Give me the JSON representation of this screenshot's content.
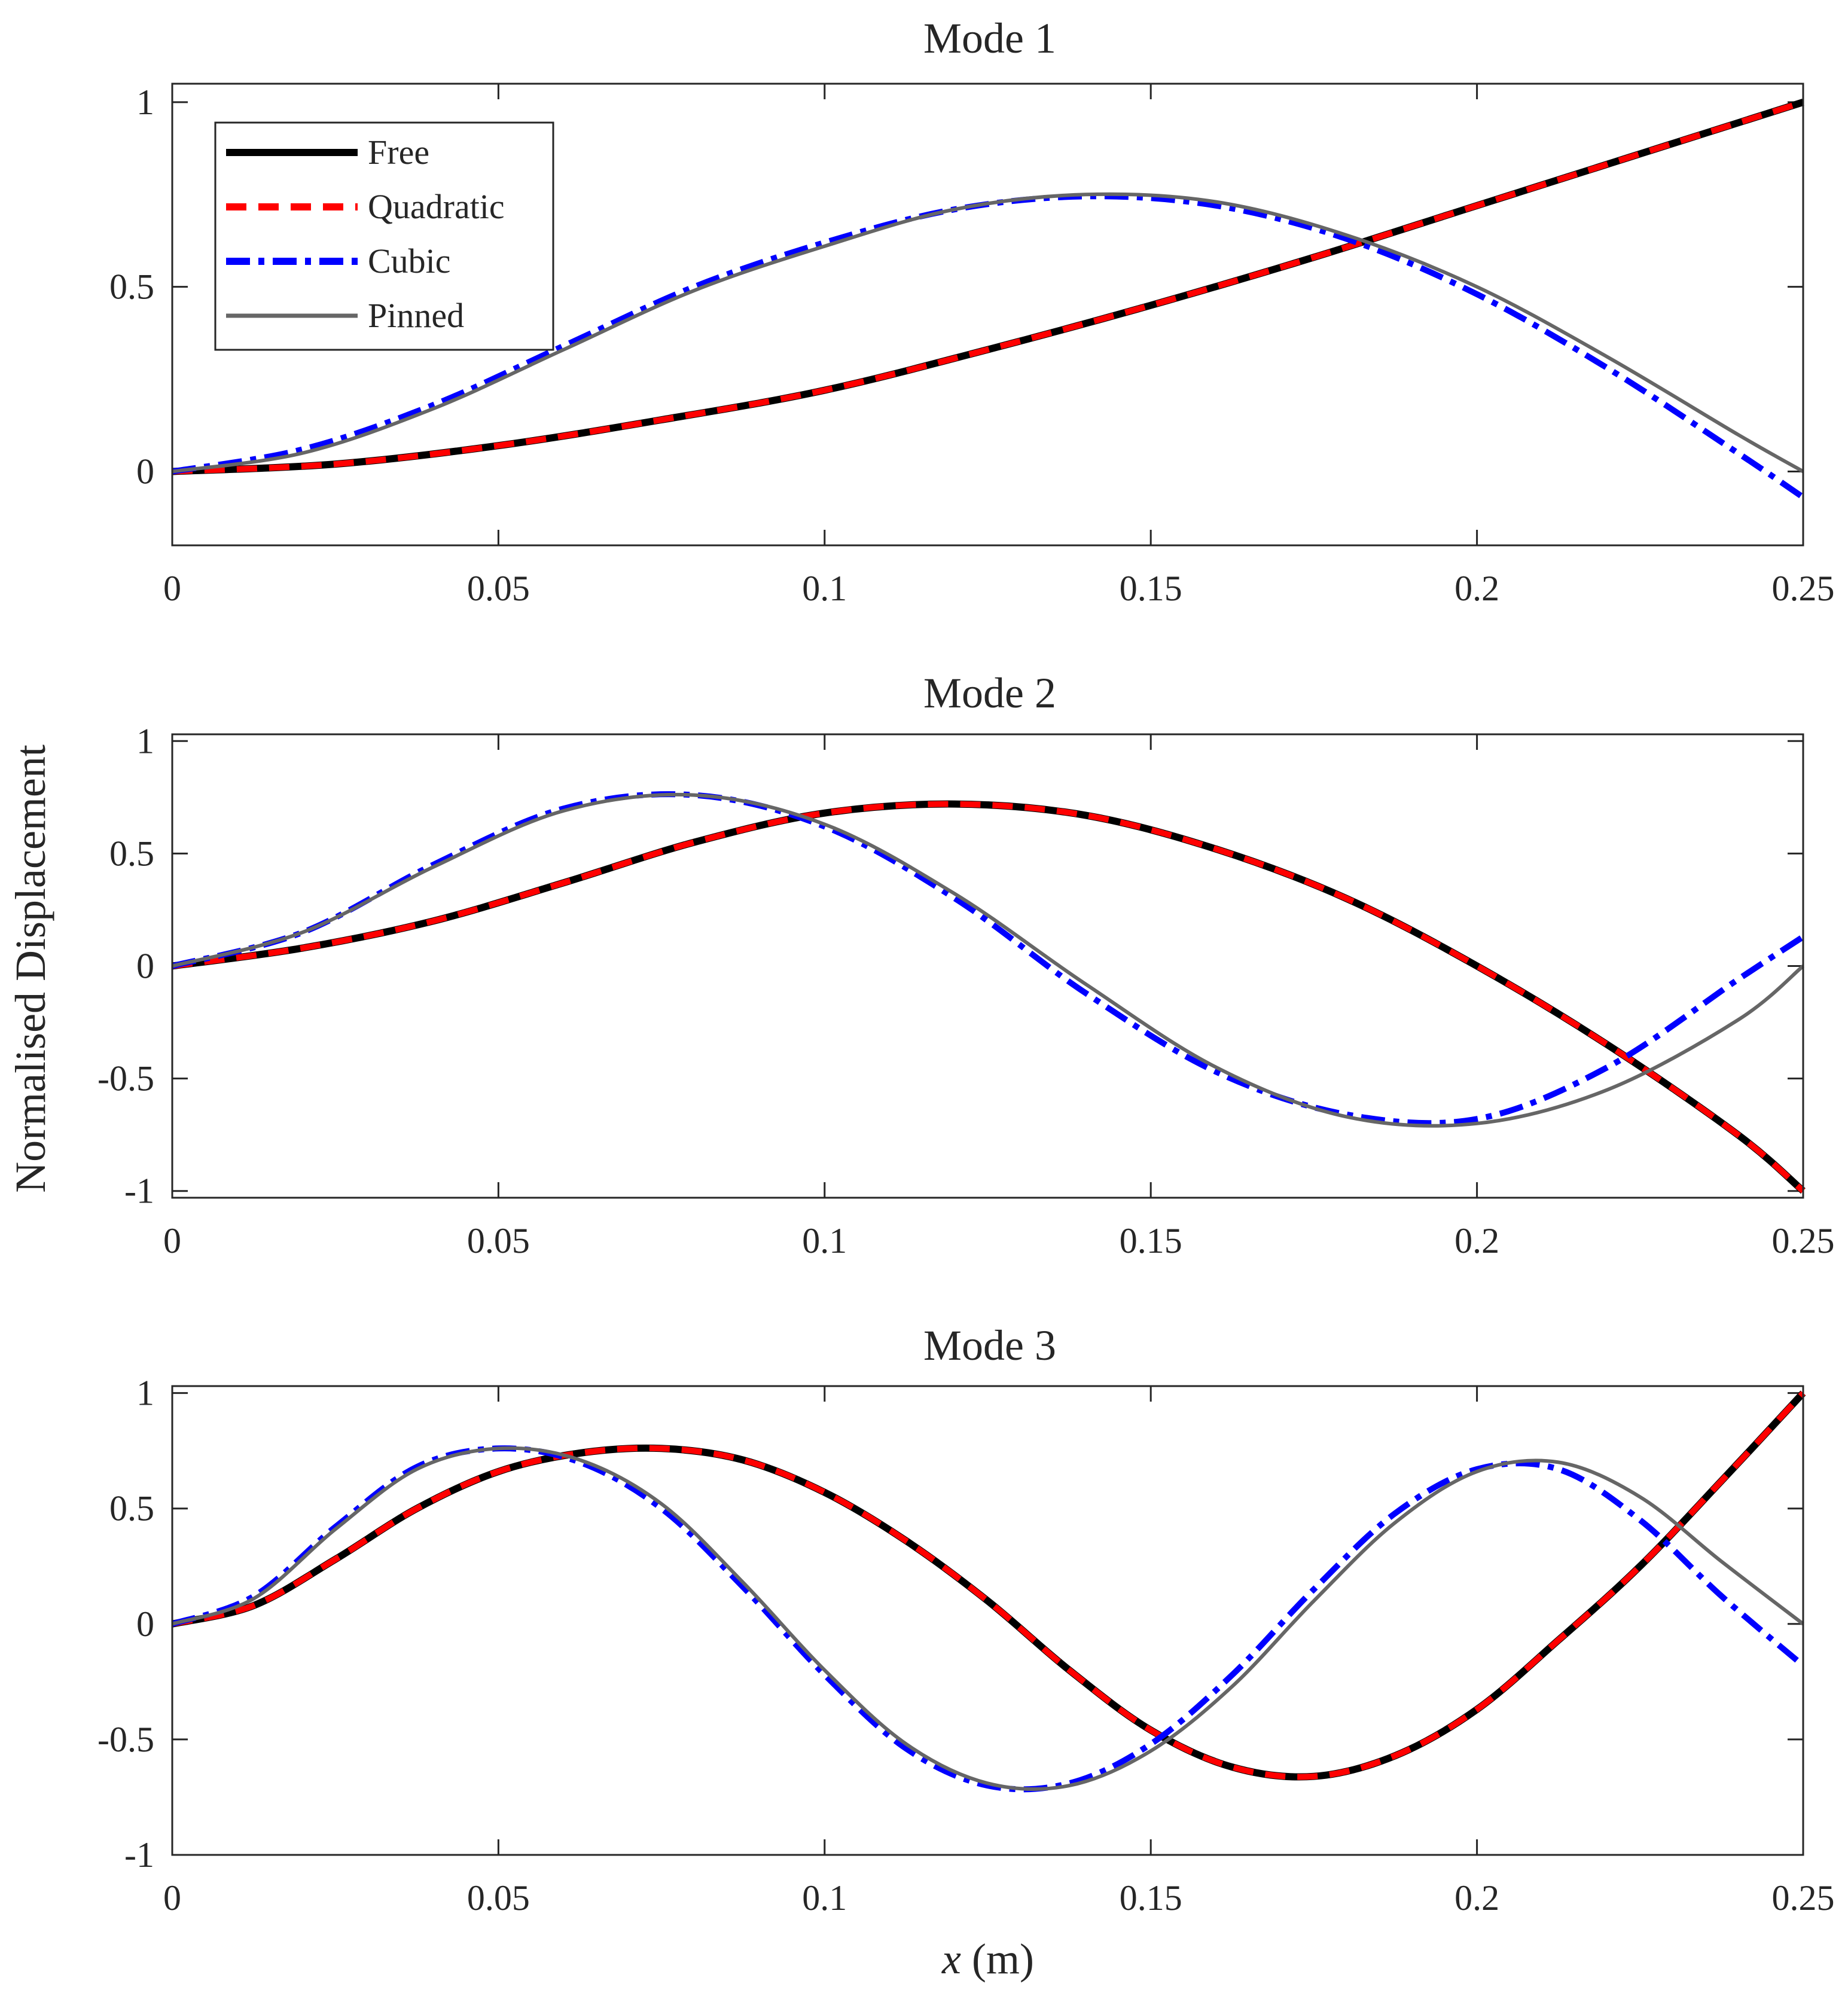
{
  "figure": {
    "ylabel": "Normalised Displacement",
    "xlabel_var": "x",
    "xlabel_unit": " (m)"
  },
  "legend": {
    "entries": [
      {
        "key": "free",
        "label": "Free"
      },
      {
        "key": "quadratic",
        "label": "Quadratic"
      },
      {
        "key": "cubic",
        "label": "Cubic"
      },
      {
        "key": "pinned",
        "label": "Pinned"
      }
    ],
    "position": "top-left of Mode 1 panel"
  },
  "series_styles": {
    "free": {
      "color": "#000000",
      "dash": "solid"
    },
    "quadratic": {
      "color": "#ff0000",
      "dash": "dashed"
    },
    "cubic": {
      "color": "#0000ff",
      "dash": "dash-dot"
    },
    "pinned": {
      "color": "#666666",
      "dash": "solid"
    }
  },
  "chart_data": [
    {
      "type": "line",
      "title": "Mode 1",
      "xlabel": "",
      "ylabel": "",
      "xlim": [
        0,
        0.25
      ],
      "ylim": [
        -0.2,
        1.05
      ],
      "xticks": [
        0,
        0.05,
        0.1,
        0.15,
        0.2,
        0.25
      ],
      "xtick_labels": [
        "0",
        "0.05",
        "0.1",
        "0.15",
        "0.2",
        "0.25"
      ],
      "yticks": [
        0,
        0.5,
        1
      ],
      "ytick_labels": [
        "0",
        "0.5",
        "1"
      ],
      "series": [
        {
          "name": "Free",
          "key": "free",
          "x": [
            0,
            0.025,
            0.05,
            0.075,
            0.1,
            0.125,
            0.15,
            0.175,
            0.2,
            0.225,
            0.25
          ],
          "y": [
            0,
            0.02,
            0.07,
            0.14,
            0.22,
            0.33,
            0.45,
            0.58,
            0.72,
            0.86,
            1.0
          ]
        },
        {
          "name": "Quadratic",
          "key": "quadratic",
          "x": [
            0,
            0.025,
            0.05,
            0.075,
            0.1,
            0.125,
            0.15,
            0.175,
            0.2,
            0.225,
            0.25
          ],
          "y": [
            0,
            0.02,
            0.07,
            0.14,
            0.22,
            0.33,
            0.45,
            0.58,
            0.72,
            0.86,
            1.0
          ]
        },
        {
          "name": "Cubic",
          "key": "cubic",
          "x": [
            0,
            0.02,
            0.04,
            0.06,
            0.08,
            0.1,
            0.12,
            0.14,
            0.16,
            0.18,
            0.2,
            0.22,
            0.24,
            0.25
          ],
          "y": [
            0,
            0.06,
            0.18,
            0.34,
            0.5,
            0.62,
            0.71,
            0.745,
            0.72,
            0.63,
            0.48,
            0.28,
            0.05,
            -0.07
          ]
        },
        {
          "name": "Pinned",
          "key": "pinned",
          "x": [
            0,
            0.02,
            0.04,
            0.06,
            0.08,
            0.1,
            0.12,
            0.14,
            0.16,
            0.18,
            0.2,
            0.22,
            0.24,
            0.25
          ],
          "y": [
            0,
            0.05,
            0.17,
            0.33,
            0.49,
            0.61,
            0.71,
            0.75,
            0.73,
            0.64,
            0.5,
            0.31,
            0.1,
            0.0
          ]
        }
      ]
    },
    {
      "type": "line",
      "title": "Mode 2",
      "xlabel": "",
      "ylabel": "",
      "xlim": [
        0,
        0.25
      ],
      "ylim": [
        -1.03,
        1.03
      ],
      "xticks": [
        0,
        0.05,
        0.1,
        0.15,
        0.2,
        0.25
      ],
      "xtick_labels": [
        "0",
        "0.05",
        "0.1",
        "0.15",
        "0.2",
        "0.25"
      ],
      "yticks": [
        -1,
        -0.5,
        0,
        0.5,
        1
      ],
      "ytick_labels": [
        "-1",
        "-0.5",
        "0",
        "0.5",
        "1"
      ],
      "series": [
        {
          "name": "Free",
          "key": "free",
          "x": [
            0,
            0.02,
            0.04,
            0.06,
            0.08,
            0.1,
            0.12,
            0.14,
            0.16,
            0.18,
            0.2,
            0.22,
            0.24,
            0.25
          ],
          "y": [
            0,
            0.08,
            0.2,
            0.37,
            0.55,
            0.68,
            0.72,
            0.67,
            0.52,
            0.3,
            0.0,
            -0.35,
            -0.75,
            -1.0
          ]
        },
        {
          "name": "Quadratic",
          "key": "quadratic",
          "x": [
            0,
            0.02,
            0.04,
            0.06,
            0.08,
            0.1,
            0.12,
            0.14,
            0.16,
            0.18,
            0.2,
            0.22,
            0.24,
            0.25
          ],
          "y": [
            0,
            0.08,
            0.2,
            0.37,
            0.55,
            0.68,
            0.72,
            0.67,
            0.52,
            0.3,
            0.0,
            -0.35,
            -0.75,
            -1.0
          ]
        },
        {
          "name": "Cubic",
          "key": "cubic",
          "x": [
            0,
            0.02,
            0.04,
            0.06,
            0.08,
            0.1,
            0.12,
            0.14,
            0.16,
            0.18,
            0.2,
            0.22,
            0.24,
            0.25
          ],
          "y": [
            0,
            0.15,
            0.45,
            0.7,
            0.76,
            0.62,
            0.3,
            -0.12,
            -0.47,
            -0.66,
            -0.68,
            -0.45,
            -0.06,
            0.13
          ]
        },
        {
          "name": "Pinned",
          "key": "pinned",
          "x": [
            0,
            0.02,
            0.04,
            0.06,
            0.08,
            0.1,
            0.12,
            0.14,
            0.16,
            0.18,
            0.2,
            0.22,
            0.24,
            0.25
          ],
          "y": [
            0,
            0.15,
            0.44,
            0.69,
            0.76,
            0.63,
            0.32,
            -0.08,
            -0.45,
            -0.67,
            -0.7,
            -0.55,
            -0.24,
            0.0
          ]
        }
      ]
    },
    {
      "type": "line",
      "title": "Mode 3",
      "xlabel": "x (m)",
      "ylabel": "",
      "xlim": [
        0,
        0.25
      ],
      "ylim": [
        -1.0,
        1.03
      ],
      "xticks": [
        0,
        0.05,
        0.1,
        0.15,
        0.2,
        0.25
      ],
      "xtick_labels": [
        "0",
        "0.05",
        "0.1",
        "0.15",
        "0.2",
        "0.25"
      ],
      "yticks": [
        -1,
        -0.5,
        0,
        0.5,
        1
      ],
      "ytick_labels": [
        "-1",
        "-0.5",
        "0",
        "0.5",
        "1"
      ],
      "series": [
        {
          "name": "Free",
          "key": "free",
          "x": [
            0,
            0.0125,
            0.025,
            0.0375,
            0.05,
            0.0625,
            0.075,
            0.0875,
            0.1,
            0.1125,
            0.125,
            0.1375,
            0.15,
            0.1625,
            0.175,
            0.1875,
            0.2,
            0.2125,
            0.225,
            0.2375,
            0.25
          ],
          "y": [
            0,
            0.08,
            0.28,
            0.5,
            0.66,
            0.74,
            0.76,
            0.71,
            0.57,
            0.36,
            0.1,
            -0.2,
            -0.46,
            -0.62,
            -0.66,
            -0.57,
            -0.37,
            -0.07,
            0.25,
            0.62,
            1.0
          ]
        },
        {
          "name": "Quadratic",
          "key": "quadratic",
          "x": [
            0,
            0.0125,
            0.025,
            0.0375,
            0.05,
            0.0625,
            0.075,
            0.0875,
            0.1,
            0.1125,
            0.125,
            0.1375,
            0.15,
            0.1625,
            0.175,
            0.1875,
            0.2,
            0.2125,
            0.225,
            0.2375,
            0.25
          ],
          "y": [
            0,
            0.08,
            0.28,
            0.5,
            0.66,
            0.74,
            0.76,
            0.71,
            0.57,
            0.36,
            0.1,
            -0.2,
            -0.46,
            -0.62,
            -0.66,
            -0.57,
            -0.37,
            -0.07,
            0.25,
            0.62,
            1.0
          ]
        },
        {
          "name": "Cubic",
          "key": "cubic",
          "x": [
            0,
            0.0125,
            0.025,
            0.0375,
            0.05,
            0.0625,
            0.075,
            0.0875,
            0.1,
            0.1125,
            0.125,
            0.1375,
            0.15,
            0.1625,
            0.175,
            0.1875,
            0.2,
            0.2125,
            0.225,
            0.2375,
            0.25
          ],
          "y": [
            0,
            0.12,
            0.42,
            0.68,
            0.76,
            0.7,
            0.5,
            0.16,
            -0.22,
            -0.54,
            -0.7,
            -0.69,
            -0.52,
            -0.22,
            0.15,
            0.48,
            0.67,
            0.67,
            0.45,
            0.12,
            -0.18
          ]
        },
        {
          "name": "Pinned",
          "key": "pinned",
          "x": [
            0,
            0.0125,
            0.025,
            0.0375,
            0.05,
            0.0625,
            0.075,
            0.0875,
            0.1,
            0.1125,
            0.125,
            0.1375,
            0.15,
            0.1625,
            0.175,
            0.1875,
            0.2,
            0.2125,
            0.225,
            0.2375,
            0.25
          ],
          "y": [
            0,
            0.11,
            0.41,
            0.67,
            0.76,
            0.71,
            0.52,
            0.18,
            -0.2,
            -0.52,
            -0.69,
            -0.7,
            -0.55,
            -0.27,
            0.1,
            0.44,
            0.66,
            0.7,
            0.55,
            0.27,
            0.0
          ]
        }
      ]
    }
  ]
}
